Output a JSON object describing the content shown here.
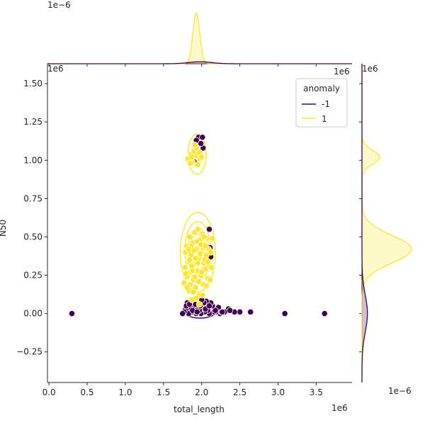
{
  "chart_data": {
    "type": "scatter",
    "subtype": "joint-plot-with-kde-contours-and-marginal-kde",
    "xlabel": "total_length",
    "ylabel": "N50",
    "x_offset_label": "1e6",
    "y_offset_label": "1e6",
    "x_offset_label_repeat": "1e6",
    "top_marginal_offset_label": "1e−6",
    "right_marginal_offset_label": "1e−6",
    "x_scale": 1000000,
    "y_scale": 1000000,
    "xlim": [
      -0.02,
      3.97
    ],
    "ylim": [
      -0.45,
      1.63
    ],
    "x_ticks": [
      0.0,
      0.5,
      1.0,
      1.5,
      2.0,
      2.5,
      3.0,
      3.5
    ],
    "x_tick_labels": [
      "0.0",
      "0.5",
      "1.0",
      "1.5",
      "2.0",
      "2.5",
      "3.0",
      "3.5"
    ],
    "y_ticks": [
      -0.25,
      0.0,
      0.25,
      0.5,
      0.75,
      1.0,
      1.25,
      1.5
    ],
    "y_tick_labels": [
      "−0.25",
      "0.00",
      "0.25",
      "0.50",
      "0.75",
      "1.00",
      "1.25",
      "1.50"
    ],
    "grid": false,
    "legend": {
      "title": "anomaly",
      "placement": "top-right",
      "entries": [
        {
          "label": "-1",
          "color": "#440154"
        },
        {
          "label": "1",
          "color": "#fde725"
        }
      ]
    },
    "series": [
      {
        "name": "-1",
        "color": "#440154",
        "points": [
          [
            0.3,
            0.0
          ],
          [
            2.64,
            0.01
          ],
          [
            3.09,
            0.0
          ],
          [
            3.61,
            0.0
          ],
          [
            2.5,
            0.01
          ],
          [
            2.43,
            0.01
          ],
          [
            2.35,
            0.03
          ],
          [
            2.3,
            0.01
          ],
          [
            2.24,
            0.0
          ],
          [
            2.22,
            0.04
          ],
          [
            2.19,
            0.01
          ],
          [
            2.16,
            0.01
          ],
          [
            2.14,
            0.05
          ],
          [
            2.12,
            0.07
          ],
          [
            2.1,
            0.0
          ],
          [
            2.08,
            0.02
          ],
          [
            2.06,
            0.08
          ],
          [
            2.04,
            0.01
          ],
          [
            2.03,
            0.07
          ],
          [
            2.01,
            0.03
          ],
          [
            1.99,
            0.0
          ],
          [
            1.97,
            0.02
          ],
          [
            1.95,
            0.04
          ],
          [
            1.93,
            0.0
          ],
          [
            1.91,
            0.02
          ],
          [
            1.89,
            0.05
          ],
          [
            1.87,
            0.01
          ],
          [
            1.85,
            0.03
          ],
          [
            1.83,
            0.0
          ],
          [
            1.81,
            0.07
          ],
          [
            1.79,
            0.03
          ],
          [
            1.77,
            0.01
          ],
          [
            1.75,
            0.0
          ],
          [
            1.8,
            0.05
          ],
          [
            1.84,
            0.06
          ],
          [
            1.88,
            0.02
          ],
          [
            1.92,
            0.06
          ],
          [
            1.98,
            0.05
          ],
          [
            2.05,
            0.03
          ],
          [
            2.1,
            0.05
          ],
          [
            2.18,
            0.02
          ],
          [
            2.26,
            0.01
          ],
          [
            2.27,
            0.01
          ],
          [
            2.37,
            0.02
          ],
          [
            1.96,
            1.15
          ],
          [
            2.01,
            1.15
          ],
          [
            2.02,
            1.08
          ],
          [
            1.99,
            1.11
          ],
          [
            1.93,
            1.13
          ],
          [
            1.9,
            0.99
          ],
          [
            2.11,
            0.43
          ],
          [
            2.12,
            0.37
          ],
          [
            1.82,
            0.4
          ],
          [
            2.1,
            0.55
          ],
          [
            1.94,
            0.01
          ],
          [
            2.0,
            0.09
          ]
        ]
      },
      {
        "name": "1",
        "color": "#fde725",
        "points": [
          [
            1.82,
            1.01
          ],
          [
            1.86,
            1.04
          ],
          [
            1.9,
            1.06
          ],
          [
            1.94,
            1.03
          ],
          [
            1.98,
            1.01
          ],
          [
            1.88,
            0.99
          ],
          [
            1.93,
            1.08
          ],
          [
            1.85,
            0.98
          ],
          [
            1.97,
            1.05
          ],
          [
            2.0,
            1.02
          ],
          [
            1.91,
            1.1
          ],
          [
            1.95,
            0.97
          ],
          [
            1.87,
            1.02
          ],
          [
            1.77,
            0.2
          ],
          [
            1.78,
            0.3
          ],
          [
            1.79,
            0.4
          ],
          [
            1.8,
            0.44
          ],
          [
            1.81,
            0.24
          ],
          [
            1.82,
            0.34
          ],
          [
            1.83,
            0.15
          ],
          [
            1.84,
            0.5
          ],
          [
            1.85,
            0.27
          ],
          [
            1.86,
            0.38
          ],
          [
            1.87,
            0.09
          ],
          [
            1.88,
            0.46
          ],
          [
            1.89,
            0.22
          ],
          [
            1.9,
            0.32
          ],
          [
            1.91,
            0.53
          ],
          [
            1.92,
            0.17
          ],
          [
            1.93,
            0.42
          ],
          [
            1.94,
            0.28
          ],
          [
            1.95,
            0.55
          ],
          [
            1.96,
            0.36
          ],
          [
            1.97,
            0.12
          ],
          [
            1.98,
            0.48
          ],
          [
            1.99,
            0.25
          ],
          [
            2.0,
            0.4
          ],
          [
            2.01,
            0.52
          ],
          [
            2.02,
            0.19
          ],
          [
            2.03,
            0.33
          ],
          [
            2.04,
            0.45
          ],
          [
            2.05,
            0.29
          ],
          [
            2.06,
            0.38
          ],
          [
            2.07,
            0.49
          ],
          [
            2.08,
            0.23
          ],
          [
            2.09,
            0.42
          ],
          [
            2.1,
            0.31
          ],
          [
            2.12,
            0.4
          ],
          [
            2.14,
            0.49
          ],
          [
            2.13,
            0.3
          ],
          [
            2.11,
            0.22
          ],
          [
            1.84,
            0.35
          ],
          [
            1.86,
            0.44
          ],
          [
            1.88,
            0.28
          ],
          [
            1.9,
            0.41
          ],
          [
            1.92,
            0.36
          ],
          [
            1.94,
            0.47
          ],
          [
            1.96,
            0.21
          ],
          [
            1.98,
            0.39
          ],
          [
            2.0,
            0.27
          ],
          [
            2.02,
            0.43
          ],
          [
            2.04,
            0.35
          ],
          [
            2.06,
            0.18
          ],
          [
            1.89,
            0.14
          ],
          [
            1.93,
            0.1
          ],
          [
            1.97,
            0.06
          ],
          [
            2.01,
            0.12
          ],
          [
            1.85,
            0.19
          ],
          [
            1.91,
            0.24
          ],
          [
            1.95,
            0.33
          ],
          [
            1.99,
            0.45
          ],
          [
            2.03,
            0.5
          ],
          [
            1.87,
            0.31
          ],
          [
            1.81,
            0.17
          ],
          [
            1.79,
            0.26
          ],
          [
            1.83,
            0.42
          ],
          [
            2.08,
            0.34
          ],
          [
            2.05,
            0.44
          ]
        ]
      }
    ],
    "kde_contours": [
      {
        "series": "1",
        "color": "#fde725",
        "levels": [
          {
            "cx": 1.95,
            "cy": 0.4,
            "rx": 0.23,
            "ry": 0.26
          },
          {
            "cx": 1.95,
            "cy": 0.41,
            "rx": 0.17,
            "ry": 0.19
          },
          {
            "cx": 1.95,
            "cy": 0.42,
            "rx": 0.12,
            "ry": 0.14
          },
          {
            "cx": 1.94,
            "cy": 0.43,
            "rx": 0.08,
            "ry": 0.09
          },
          {
            "cx": 1.94,
            "cy": 1.04,
            "rx": 0.12,
            "ry": 0.13
          },
          {
            "cx": 1.94,
            "cy": 1.04,
            "rx": 0.07,
            "ry": 0.07
          }
        ]
      },
      {
        "series": "-1",
        "color": "#440154",
        "levels": [
          {
            "cx": 1.98,
            "cy": 0.02,
            "rx": 0.22,
            "ry": 0.05
          }
        ]
      }
    ],
    "marginal_x": {
      "series": [
        {
          "name": "1",
          "color": "#fde725",
          "peaks": [
            {
              "mu": 1.93,
              "sigma": 0.045,
              "height": 1.0
            }
          ]
        },
        {
          "name": "-1",
          "color": "#440154",
          "peaks": [
            {
              "mu": 1.98,
              "sigma": 0.15,
              "height": 0.04
            }
          ]
        }
      ]
    },
    "marginal_y": {
      "series": [
        {
          "name": "1",
          "color": "#fde725",
          "peaks": [
            {
              "mu": 0.42,
              "sigma": 0.09,
              "height": 1.0
            },
            {
              "mu": 1.02,
              "sigma": 0.045,
              "height": 0.36
            }
          ]
        },
        {
          "name": "-1",
          "color": "#440154",
          "peaks": [
            {
              "mu": 0.0,
              "sigma": 0.12,
              "height": 0.11
            }
          ]
        }
      ]
    }
  }
}
